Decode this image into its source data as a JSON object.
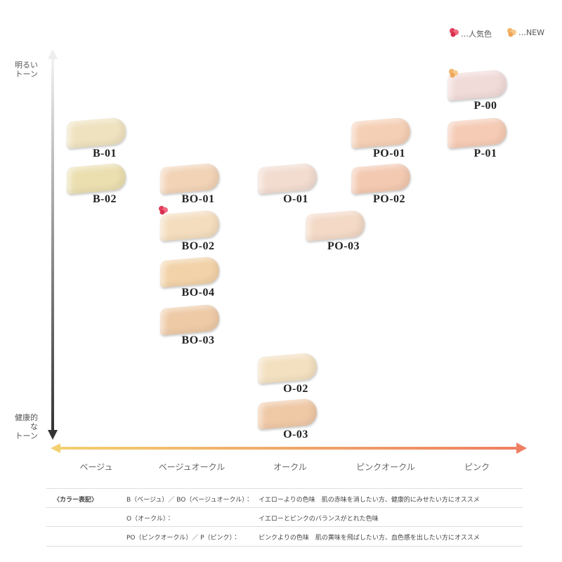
{
  "legend": {
    "popular": "…人気色",
    "new": "…NEW"
  },
  "y_axis": {
    "top": [
      "明るい",
      "トーン"
    ],
    "bottom": [
      "健康的な",
      "トーン"
    ]
  },
  "x_axis": {
    "categories": [
      "ベージュ",
      "ベージュオークル",
      "オークル",
      "ピンクオークル",
      "ピンク"
    ]
  },
  "swatches": [
    "B-01",
    "B-02",
    "BO-01",
    "BO-02",
    "BO-04",
    "BO-03",
    "O-01",
    "O-02",
    "O-03",
    "PO-03",
    "PO-01",
    "PO-02",
    "P-00",
    "P-01"
  ],
  "table": {
    "heading": "〈カラー表記〉",
    "rows": [
      [
        "B（ベージュ）／ BO（ベージュオークル）：",
        "イエローよりの色味　肌の赤味を消したい方、健康的にみせたい方にオススメ"
      ],
      [
        "O（オークル）：",
        "イエローとピンクのバランスがとれた色味"
      ],
      [
        "PO（ピンクオークル）／ P（ピンク）：",
        "ピンクよりの色味　肌の黄味を飛ばしたい方、血色感を出したい方にオススメ"
      ]
    ]
  }
}
